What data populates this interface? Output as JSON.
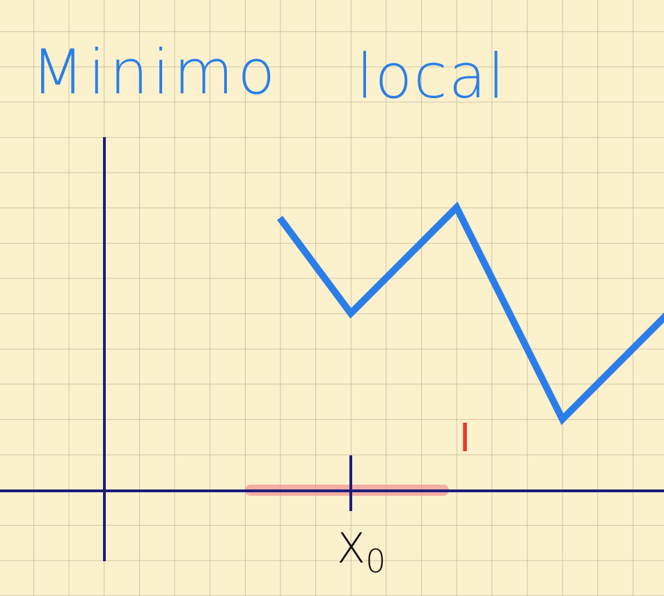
{
  "title": {
    "words": [
      "Minimo",
      "local"
    ]
  },
  "labels": {
    "interval": "I",
    "point": {
      "base": "X",
      "sub": "0"
    }
  }
}
